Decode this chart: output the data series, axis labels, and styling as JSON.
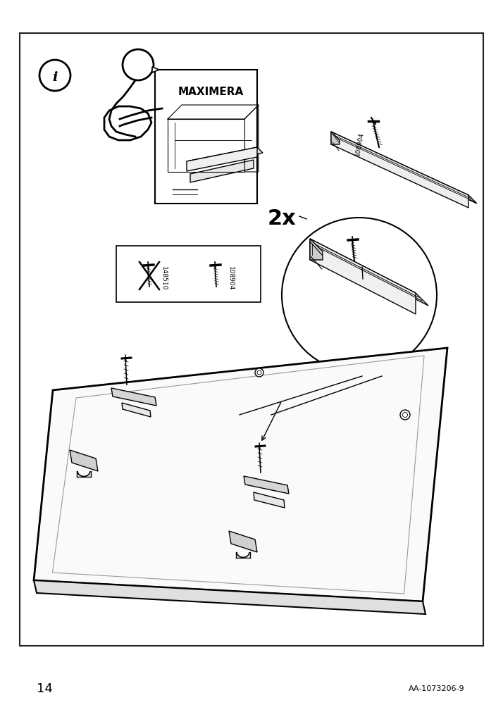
{
  "bg_color": "#ffffff",
  "page_number": "14",
  "doc_number": "AA-1073206-9",
  "quantity_text": "2x",
  "screw_label_1": "148510",
  "screw_label_2": "108904",
  "screw_rotated_label": "108904"
}
